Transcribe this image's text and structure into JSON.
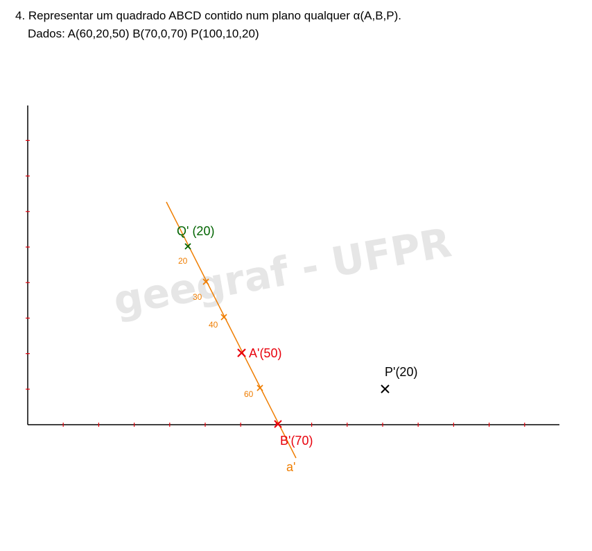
{
  "heading": {
    "line1": "4. Representar um quadrado ABCD contido num plano qualquer α(A,B,P).",
    "line2": "Dados: A(60,20,50)  B(70,0,70)  P(100,10,20)"
  },
  "watermark": "geegraf - UFPR",
  "points": {
    "q": "Q' (20)",
    "a": "A'(50)",
    "b": "B'(70)",
    "p": "P'(20)"
  },
  "line_label": "a'",
  "tick_labels": [
    "20",
    "30",
    "40",
    "60"
  ],
  "colors": {
    "orange": "#ef7d00",
    "red": "#e8000b",
    "green": "#006400",
    "black": "#000000",
    "axis": "#000000",
    "watermark": "#e6e6e6"
  }
}
